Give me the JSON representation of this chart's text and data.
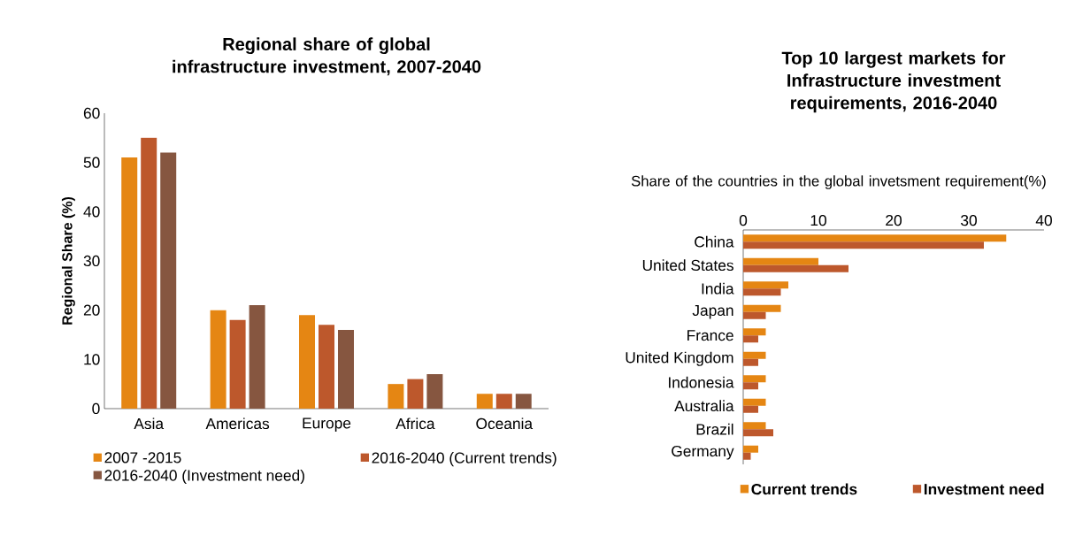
{
  "chart_data": [
    {
      "type": "bar",
      "title": "Regional share of global infrastructure investment, 2007-2040",
      "ylabel": "Regional Share (%)",
      "categories": [
        "Asia",
        "Americas",
        "Europe",
        "Africa",
        "Oceania"
      ],
      "series": [
        {
          "name": "2007 -2015",
          "color": "#e58613",
          "values": [
            51,
            20,
            19,
            5,
            3
          ]
        },
        {
          "name": "2016-2040 (Current trends)",
          "color": "#bd582c",
          "values": [
            55,
            18,
            17,
            6,
            3
          ]
        },
        {
          "name": "2016-2040 (Investment need)",
          "color": "#865640",
          "values": [
            52,
            21,
            16,
            7,
            3
          ]
        }
      ],
      "ylim": [
        0,
        60
      ],
      "yticks": [
        0,
        10,
        20,
        30,
        40,
        50,
        60
      ],
      "legend": "bottom"
    },
    {
      "type": "bar",
      "orientation": "horizontal",
      "title": "Top 10 largest markets for Infrastructure investment requirements, 2016-2040",
      "xlabel": "Share of the countries in the global invetsment requirement(%)",
      "categories": [
        "China",
        "United States",
        "India",
        "Japan",
        "France",
        "United Kingdom",
        "Indonesia",
        "Australia",
        "Brazil",
        "Germany"
      ],
      "series": [
        {
          "name": "Current trends",
          "color": "#e58613",
          "values": [
            35,
            10,
            6,
            5,
            3,
            3,
            3,
            3,
            3,
            2
          ]
        },
        {
          "name": "Investment need",
          "color": "#bd582c",
          "values": [
            32,
            14,
            5,
            3,
            2,
            2,
            2,
            2,
            4,
            1
          ]
        }
      ],
      "xlim": [
        0,
        40
      ],
      "xticks": [
        0,
        10,
        20,
        30,
        40
      ],
      "legend": "bottom"
    }
  ]
}
